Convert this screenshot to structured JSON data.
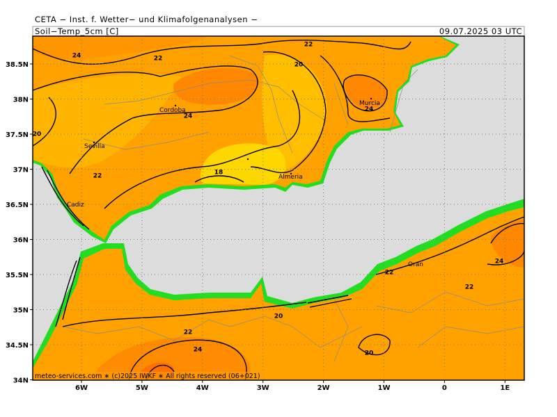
{
  "header": {
    "title": "CETA − Inst. f. Wetter− und Klimafolgenanalysen −",
    "parameter": "Soil−Temp_5cm [C]",
    "valid_time": "09.07.2025 03 UTC"
  },
  "lat_labels": [
    "38.5N",
    "38N",
    "37.5N",
    "37N",
    "36.5N",
    "36N",
    "35.5N",
    "35N",
    "34.5N",
    "34N"
  ],
  "lon_labels": [
    "6W",
    "5W",
    "4W",
    "3W",
    "2W",
    "1W",
    "0",
    "1E"
  ],
  "cities": [
    "Cordoba",
    "Sevilla",
    "Murcia",
    "Almeria",
    "Cadiz",
    "Oran"
  ],
  "contour_labels": [
    "24",
    "22",
    "22",
    "20",
    "24",
    "24",
    "20",
    "22",
    "18",
    "22",
    "24",
    "22",
    "20",
    "22",
    "24",
    "20"
  ],
  "footer": "meteo-services.com ∗ (c)2025 IWKF ∗ All rights reserved (06+021)"
}
